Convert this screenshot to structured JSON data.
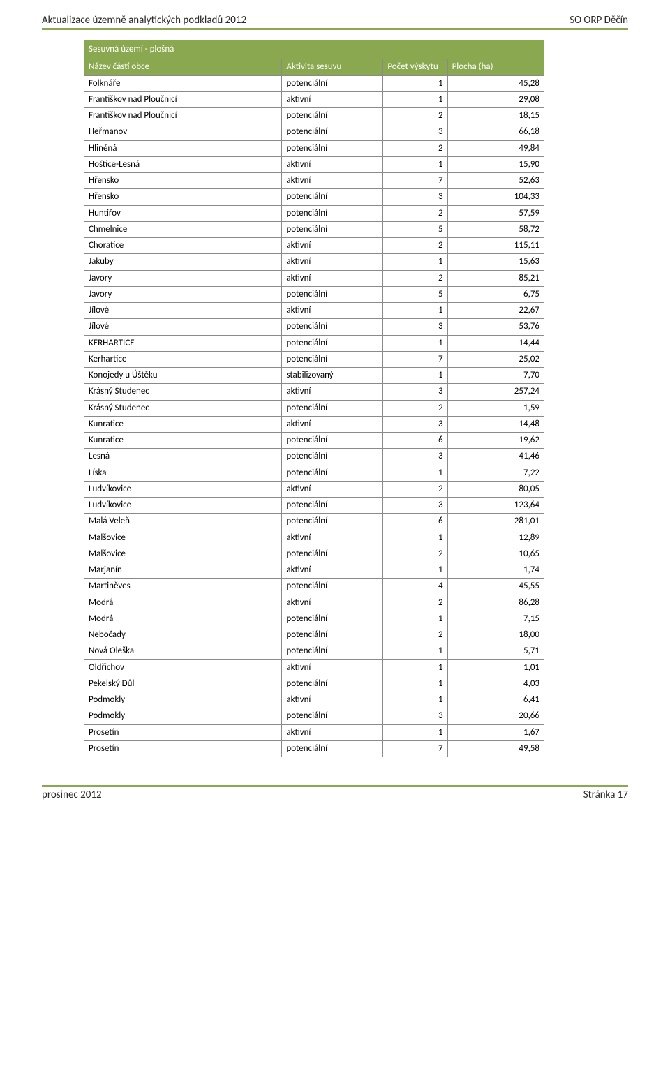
{
  "header": {
    "left": "Aktualizace územně analytických podkladů 2012",
    "right": "SO ORP Děčín"
  },
  "table": {
    "title": "Sesuvná území - plošná",
    "columns": [
      "Název částí obce",
      "Aktivita sesuvu",
      "Počet výskytu",
      "Plocha (ha)"
    ],
    "header_bg": "#8aa84f",
    "header_fg": "#ffffff",
    "rows": [
      [
        "Folknáře",
        "potenciální",
        "1",
        "45,28"
      ],
      [
        "Františkov nad Ploučnicí",
        "aktivní",
        "1",
        "29,08"
      ],
      [
        "Františkov nad Ploučnicí",
        "potenciální",
        "2",
        "18,15"
      ],
      [
        "Heřmanov",
        "potenciální",
        "3",
        "66,18"
      ],
      [
        "Hliněná",
        "potenciální",
        "2",
        "49,84"
      ],
      [
        "Hoštice-Lesná",
        "aktivní",
        "1",
        "15,90"
      ],
      [
        "Hřensko",
        "aktivní",
        "7",
        "52,63"
      ],
      [
        "Hřensko",
        "potenciální",
        "3",
        "104,33"
      ],
      [
        "Huntířov",
        "potenciální",
        "2",
        "57,59"
      ],
      [
        "Chmelnice",
        "potenciální",
        "5",
        "58,72"
      ],
      [
        "Choratice",
        "aktivní",
        "2",
        "115,11"
      ],
      [
        "Jakuby",
        "aktivní",
        "1",
        "15,63"
      ],
      [
        "Javory",
        "aktivní",
        "2",
        "85,21"
      ],
      [
        "Javory",
        "potenciální",
        "5",
        "6,75"
      ],
      [
        "Jílové",
        "aktivní",
        "1",
        "22,67"
      ],
      [
        "Jílové",
        "potenciální",
        "3",
        "53,76"
      ],
      [
        "KERHARTICE",
        "potenciální",
        "1",
        "14,44"
      ],
      [
        "Kerhartice",
        "potenciální",
        "7",
        "25,02"
      ],
      [
        "Konojedy u Úštěku",
        "stabilizovaný",
        "1",
        "7,70"
      ],
      [
        "Krásný Studenec",
        "aktivní",
        "3",
        "257,24"
      ],
      [
        "Krásný Studenec",
        "potenciální",
        "2",
        "1,59"
      ],
      [
        "Kunratice",
        "aktivní",
        "3",
        "14,48"
      ],
      [
        "Kunratice",
        "potenciální",
        "6",
        "19,62"
      ],
      [
        "Lesná",
        "potenciální",
        "3",
        "41,46"
      ],
      [
        "Líska",
        "potenciální",
        "1",
        "7,22"
      ],
      [
        "Ludvíkovice",
        "aktivní",
        "2",
        "80,05"
      ],
      [
        "Ludvíkovice",
        "potenciální",
        "3",
        "123,64"
      ],
      [
        "Malá Veleň",
        "potenciální",
        "6",
        "281,01"
      ],
      [
        "Malšovice",
        "aktivní",
        "1",
        "12,89"
      ],
      [
        "Malšovice",
        "potenciální",
        "2",
        "10,65"
      ],
      [
        "Marjanín",
        "aktivní",
        "1",
        "1,74"
      ],
      [
        "Martiněves",
        "potenciální",
        "4",
        "45,55"
      ],
      [
        "Modrá",
        "aktivní",
        "2",
        "86,28"
      ],
      [
        "Modrá",
        "potenciální",
        "1",
        "7,15"
      ],
      [
        "Nebočady",
        "potenciální",
        "2",
        "18,00"
      ],
      [
        "Nová Oleška",
        "potenciální",
        "1",
        "5,71"
      ],
      [
        "Oldřichov",
        "aktivní",
        "1",
        "1,01"
      ],
      [
        "Pekelský Důl",
        "potenciální",
        "1",
        "4,03"
      ],
      [
        "Podmokly",
        "aktivní",
        "1",
        "6,41"
      ],
      [
        "Podmokly",
        "potenciální",
        "3",
        "20,66"
      ],
      [
        "Prosetín",
        "aktivní",
        "1",
        "1,67"
      ],
      [
        "Prosetín",
        "potenciální",
        "7",
        "49,58"
      ]
    ]
  },
  "footer": {
    "left": "prosinec 2012",
    "right": "Stránka 17"
  },
  "style": {
    "accent": "#8aa84f",
    "border": "#8a8a8a",
    "body_font": "Calibri",
    "font_size_body": 13,
    "font_size_headfoot": 15
  }
}
